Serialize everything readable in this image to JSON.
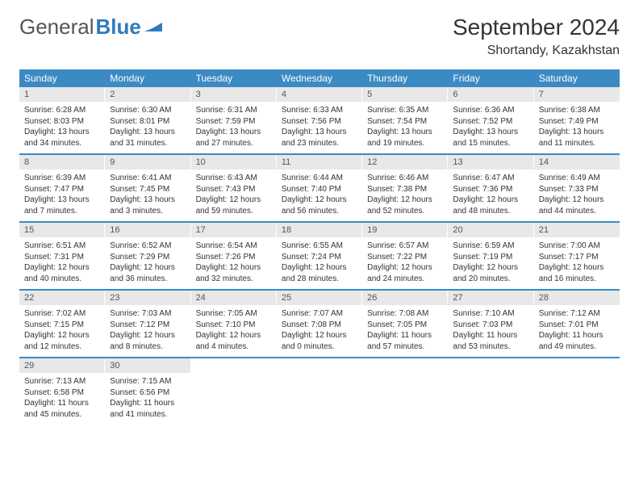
{
  "logo": {
    "text1": "General",
    "text2": "Blue"
  },
  "title": "September 2024",
  "location": "Shortandy, Kazakhstan",
  "colors": {
    "header_bg": "#3b8ac4",
    "daynum_bg": "#e8e8e8",
    "rule": "#3b8ac4",
    "text": "#333333",
    "logo_gray": "#555555",
    "logo_blue": "#2f7bbd"
  },
  "weekdays": [
    "Sunday",
    "Monday",
    "Tuesday",
    "Wednesday",
    "Thursday",
    "Friday",
    "Saturday"
  ],
  "days": [
    {
      "n": "1",
      "sr": "6:28 AM",
      "ss": "8:03 PM",
      "dl": "13 hours and 34 minutes."
    },
    {
      "n": "2",
      "sr": "6:30 AM",
      "ss": "8:01 PM",
      "dl": "13 hours and 31 minutes."
    },
    {
      "n": "3",
      "sr": "6:31 AM",
      "ss": "7:59 PM",
      "dl": "13 hours and 27 minutes."
    },
    {
      "n": "4",
      "sr": "6:33 AM",
      "ss": "7:56 PM",
      "dl": "13 hours and 23 minutes."
    },
    {
      "n": "5",
      "sr": "6:35 AM",
      "ss": "7:54 PM",
      "dl": "13 hours and 19 minutes."
    },
    {
      "n": "6",
      "sr": "6:36 AM",
      "ss": "7:52 PM",
      "dl": "13 hours and 15 minutes."
    },
    {
      "n": "7",
      "sr": "6:38 AM",
      "ss": "7:49 PM",
      "dl": "13 hours and 11 minutes."
    },
    {
      "n": "8",
      "sr": "6:39 AM",
      "ss": "7:47 PM",
      "dl": "13 hours and 7 minutes."
    },
    {
      "n": "9",
      "sr": "6:41 AM",
      "ss": "7:45 PM",
      "dl": "13 hours and 3 minutes."
    },
    {
      "n": "10",
      "sr": "6:43 AM",
      "ss": "7:43 PM",
      "dl": "12 hours and 59 minutes."
    },
    {
      "n": "11",
      "sr": "6:44 AM",
      "ss": "7:40 PM",
      "dl": "12 hours and 56 minutes."
    },
    {
      "n": "12",
      "sr": "6:46 AM",
      "ss": "7:38 PM",
      "dl": "12 hours and 52 minutes."
    },
    {
      "n": "13",
      "sr": "6:47 AM",
      "ss": "7:36 PM",
      "dl": "12 hours and 48 minutes."
    },
    {
      "n": "14",
      "sr": "6:49 AM",
      "ss": "7:33 PM",
      "dl": "12 hours and 44 minutes."
    },
    {
      "n": "15",
      "sr": "6:51 AM",
      "ss": "7:31 PM",
      "dl": "12 hours and 40 minutes."
    },
    {
      "n": "16",
      "sr": "6:52 AM",
      "ss": "7:29 PM",
      "dl": "12 hours and 36 minutes."
    },
    {
      "n": "17",
      "sr": "6:54 AM",
      "ss": "7:26 PM",
      "dl": "12 hours and 32 minutes."
    },
    {
      "n": "18",
      "sr": "6:55 AM",
      "ss": "7:24 PM",
      "dl": "12 hours and 28 minutes."
    },
    {
      "n": "19",
      "sr": "6:57 AM",
      "ss": "7:22 PM",
      "dl": "12 hours and 24 minutes."
    },
    {
      "n": "20",
      "sr": "6:59 AM",
      "ss": "7:19 PM",
      "dl": "12 hours and 20 minutes."
    },
    {
      "n": "21",
      "sr": "7:00 AM",
      "ss": "7:17 PM",
      "dl": "12 hours and 16 minutes."
    },
    {
      "n": "22",
      "sr": "7:02 AM",
      "ss": "7:15 PM",
      "dl": "12 hours and 12 minutes."
    },
    {
      "n": "23",
      "sr": "7:03 AM",
      "ss": "7:12 PM",
      "dl": "12 hours and 8 minutes."
    },
    {
      "n": "24",
      "sr": "7:05 AM",
      "ss": "7:10 PM",
      "dl": "12 hours and 4 minutes."
    },
    {
      "n": "25",
      "sr": "7:07 AM",
      "ss": "7:08 PM",
      "dl": "12 hours and 0 minutes."
    },
    {
      "n": "26",
      "sr": "7:08 AM",
      "ss": "7:05 PM",
      "dl": "11 hours and 57 minutes."
    },
    {
      "n": "27",
      "sr": "7:10 AM",
      "ss": "7:03 PM",
      "dl": "11 hours and 53 minutes."
    },
    {
      "n": "28",
      "sr": "7:12 AM",
      "ss": "7:01 PM",
      "dl": "11 hours and 49 minutes."
    },
    {
      "n": "29",
      "sr": "7:13 AM",
      "ss": "6:58 PM",
      "dl": "11 hours and 45 minutes."
    },
    {
      "n": "30",
      "sr": "7:15 AM",
      "ss": "6:56 PM",
      "dl": "11 hours and 41 minutes."
    }
  ],
  "labels": {
    "sunrise": "Sunrise:",
    "sunset": "Sunset:",
    "daylight": "Daylight:"
  }
}
